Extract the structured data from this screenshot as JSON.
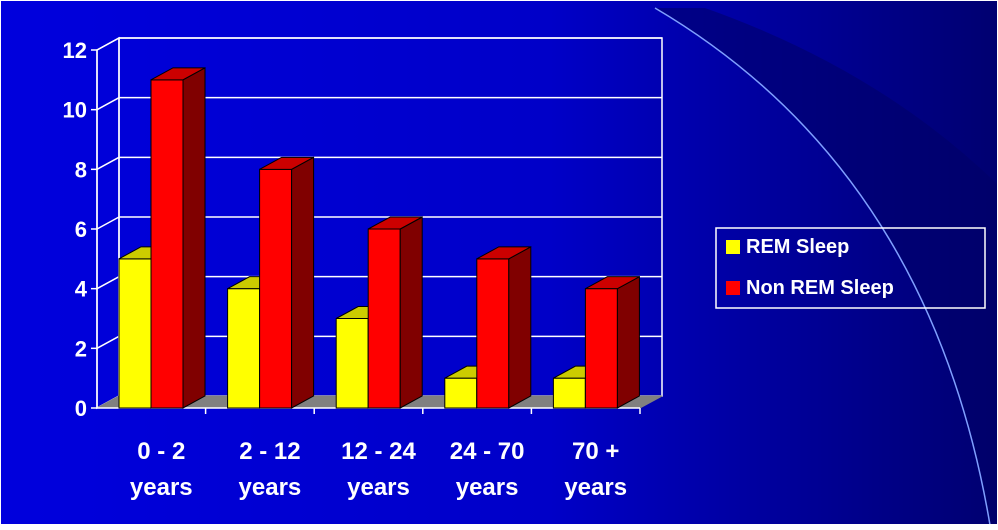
{
  "chart_data": {
    "type": "bar",
    "categories": [
      [
        "0 - 2",
        "years"
      ],
      [
        "2 - 12",
        "years"
      ],
      [
        "12 - 24",
        "years"
      ],
      [
        "24 - 70",
        "years"
      ],
      [
        "70 +",
        "years"
      ]
    ],
    "series": [
      {
        "name": "REM Sleep",
        "values": [
          5,
          4,
          3,
          1,
          1
        ],
        "color": "#ffff00",
        "side_color": "#808000",
        "top_color": "#cccc00"
      },
      {
        "name": "Non REM Sleep",
        "values": [
          11,
          8,
          6,
          5,
          4
        ],
        "color": "#ff0000",
        "side_color": "#800000",
        "top_color": "#cc0000"
      }
    ],
    "ylim": [
      0,
      12
    ],
    "yticks": [
      "0",
      "2",
      "4",
      "6",
      "8",
      "10",
      "12"
    ],
    "title": "",
    "xlabel": "",
    "ylabel": "",
    "grid": true,
    "legend_position": "right",
    "colors": {
      "background": "#0000cc",
      "background_dark": "#000066",
      "grid": "#ffffff",
      "floor": "#808080",
      "text": "#ffffff"
    }
  }
}
